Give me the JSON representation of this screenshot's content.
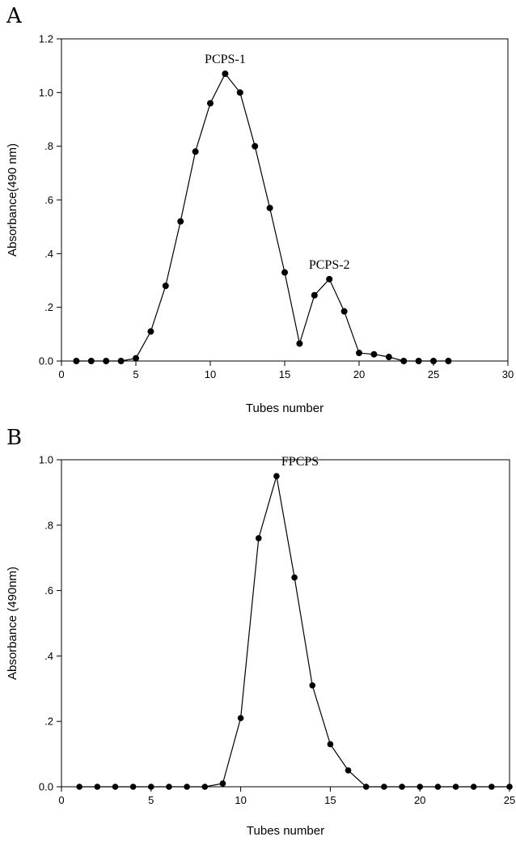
{
  "chart_data": [
    {
      "type": "line",
      "panel_label": "A",
      "xlabel": "Tubes number",
      "ylabel": "Absorbance(490 nm)",
      "xlim": [
        0,
        30
      ],
      "ylim": [
        0,
        1.2
      ],
      "x_ticks": [
        0,
        5,
        10,
        15,
        20,
        25,
        30
      ],
      "x_tick_labels": [
        "0",
        "5",
        "10",
        "15",
        "20",
        "25",
        "30"
      ],
      "y_ticks": [
        0,
        0.2,
        0.4,
        0.6,
        0.8,
        1.0,
        1.2
      ],
      "y_tick_labels": [
        "0.0",
        ".2",
        ".4",
        ".6",
        ".8",
        "1.0",
        "1.2"
      ],
      "grid": false,
      "series": [
        {
          "x": [
            1,
            2,
            3,
            4,
            5,
            6,
            7,
            8,
            9,
            10,
            11,
            12,
            13,
            14,
            15,
            16,
            17,
            18,
            19,
            20,
            21,
            22,
            23,
            24,
            25,
            26
          ],
          "values": [
            0.0,
            0.0,
            0.0,
            0.0,
            0.01,
            0.11,
            0.28,
            0.52,
            0.78,
            0.96,
            1.07,
            1.0,
            0.8,
            0.57,
            0.33,
            0.065,
            0.245,
            0.305,
            0.185,
            0.03,
            0.025,
            0.015,
            0.0,
            0.0,
            0.0,
            0.0
          ]
        }
      ],
      "annotations": [
        {
          "text": "PCPS-1",
          "x": 11,
          "y": 1.07
        },
        {
          "text": "PCPS-2",
          "x": 18,
          "y": 0.305
        }
      ]
    },
    {
      "type": "line",
      "panel_label": "B",
      "xlabel": "Tubes number",
      "ylabel": "Absorbance (490nm)",
      "xlim": [
        0,
        25
      ],
      "ylim": [
        0,
        1.0
      ],
      "x_ticks": [
        0,
        5,
        10,
        15,
        20,
        25
      ],
      "x_tick_labels": [
        "0",
        "5",
        "10",
        "15",
        "20",
        "25"
      ],
      "y_ticks": [
        0,
        0.2,
        0.4,
        0.6,
        0.8,
        1.0
      ],
      "y_tick_labels": [
        "0.0",
        ".2",
        ".4",
        ".6",
        ".8",
        "1.0"
      ],
      "grid": false,
      "series": [
        {
          "x": [
            1,
            2,
            3,
            4,
            5,
            6,
            7,
            8,
            9,
            10,
            11,
            12,
            13,
            14,
            15,
            16,
            17,
            18,
            19,
            20,
            21,
            22,
            23,
            24,
            25
          ],
          "values": [
            0.0,
            0.0,
            0.0,
            0.0,
            0.0,
            0.0,
            0.0,
            0.0,
            0.01,
            0.21,
            0.76,
            0.95,
            0.64,
            0.31,
            0.13,
            0.05,
            0.0,
            0.0,
            0.0,
            0.0,
            0.0,
            0.0,
            0.0,
            0.0,
            0.0
          ]
        }
      ],
      "annotations": [
        {
          "text": "FPCPS",
          "x": 12,
          "y": 0.95
        }
      ]
    }
  ]
}
